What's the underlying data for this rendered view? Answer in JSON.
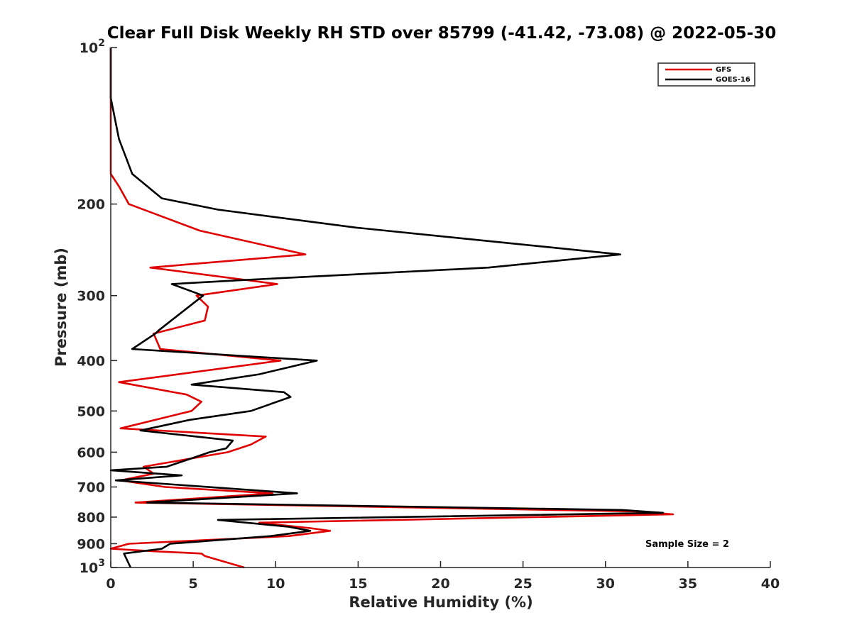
{
  "chart_data": {
    "type": "line",
    "title": "Clear Full Disk Weekly RH STD over 85799 (-41.42, -73.08) @ 2022-05-30",
    "xlabel": "Relative Humidity (%)",
    "ylabel": "Pressure (mb)",
    "xlim": [
      0,
      40
    ],
    "ylim": [
      100,
      1000
    ],
    "yscale": "log",
    "y_reversed": true,
    "x_ticks": [
      0,
      5,
      10,
      15,
      20,
      25,
      30,
      35,
      40
    ],
    "y_ticks": [
      {
        "value": 100,
        "label": "10",
        "sup": "2"
      },
      {
        "value": 200,
        "label": "200",
        "sup": ""
      },
      {
        "value": 300,
        "label": "300",
        "sup": ""
      },
      {
        "value": 400,
        "label": "400",
        "sup": ""
      },
      {
        "value": 500,
        "label": "500",
        "sup": ""
      },
      {
        "value": 600,
        "label": "600",
        "sup": ""
      },
      {
        "value": 700,
        "label": "700",
        "sup": ""
      },
      {
        "value": 800,
        "label": "800",
        "sup": ""
      },
      {
        "value": 900,
        "label": "900",
        "sup": ""
      },
      {
        "value": 1000,
        "label": "10",
        "sup": "3"
      }
    ],
    "legend": {
      "placement": "top-right"
    },
    "annotation": "Sample Size = 2",
    "grid": false,
    "series": [
      {
        "name": "GFS",
        "color": "#e00000",
        "points": [
          [
            0,
            100
          ],
          [
            0,
            125
          ],
          [
            0,
            150
          ],
          [
            0,
            175
          ],
          [
            0.5,
            185
          ],
          [
            1.1,
            200
          ],
          [
            5.4,
            225
          ],
          [
            11.8,
            250
          ],
          [
            2.4,
            265
          ],
          [
            10.1,
            285
          ],
          [
            5.2,
            300
          ],
          [
            5.9,
            315
          ],
          [
            5.7,
            335
          ],
          [
            2.6,
            355
          ],
          [
            3.0,
            380
          ],
          [
            10.3,
            400
          ],
          [
            0.5,
            440
          ],
          [
            4.6,
            465
          ],
          [
            5.5,
            480
          ],
          [
            4.9,
            500
          ],
          [
            0.6,
            540
          ],
          [
            9.4,
            560
          ],
          [
            8.5,
            580
          ],
          [
            7.1,
            600
          ],
          [
            2.0,
            640
          ],
          [
            2.6,
            660
          ],
          [
            0.6,
            680
          ],
          [
            3.3,
            700
          ],
          [
            9.8,
            720
          ],
          [
            1.5,
            750
          ],
          [
            31.8,
            780
          ],
          [
            34.1,
            790
          ],
          [
            9.0,
            820
          ],
          [
            12.1,
            840
          ],
          [
            13.3,
            850
          ],
          [
            10.8,
            870
          ],
          [
            1.1,
            900
          ],
          [
            0,
            920
          ],
          [
            2.5,
            930
          ],
          [
            5.5,
            940
          ],
          [
            5.7,
            950
          ],
          [
            8.1,
            1000
          ]
        ]
      },
      {
        "name": "GOES-16",
        "color": "#000000",
        "points": [
          [
            0,
            100
          ],
          [
            0,
            125
          ],
          [
            0.5,
            150
          ],
          [
            1.3,
            175
          ],
          [
            3.1,
            195
          ],
          [
            6.5,
            205
          ],
          [
            14.9,
            222
          ],
          [
            30.9,
            250
          ],
          [
            22.9,
            265
          ],
          [
            8.0,
            280
          ],
          [
            3.7,
            285
          ],
          [
            5.6,
            300
          ],
          [
            4.2,
            325
          ],
          [
            2.9,
            350
          ],
          [
            2.7,
            355
          ],
          [
            1.3,
            380
          ],
          [
            12.5,
            400
          ],
          [
            9.0,
            425
          ],
          [
            4.9,
            445
          ],
          [
            10.5,
            460
          ],
          [
            10.9,
            470
          ],
          [
            8.5,
            500
          ],
          [
            4.8,
            520
          ],
          [
            1.8,
            545
          ],
          [
            7.4,
            570
          ],
          [
            7.0,
            590
          ],
          [
            6.0,
            600
          ],
          [
            3.4,
            640
          ],
          [
            0,
            650
          ],
          [
            4.3,
            665
          ],
          [
            0.3,
            680
          ],
          [
            11.3,
            720
          ],
          [
            2.2,
            750
          ],
          [
            31.0,
            775
          ],
          [
            33.5,
            785
          ],
          [
            6.5,
            810
          ],
          [
            10.8,
            835
          ],
          [
            12.1,
            850
          ],
          [
            9.7,
            870
          ],
          [
            3.6,
            900
          ],
          [
            3.1,
            920
          ],
          [
            0.8,
            940
          ],
          [
            1.2,
            1000
          ]
        ]
      }
    ]
  }
}
